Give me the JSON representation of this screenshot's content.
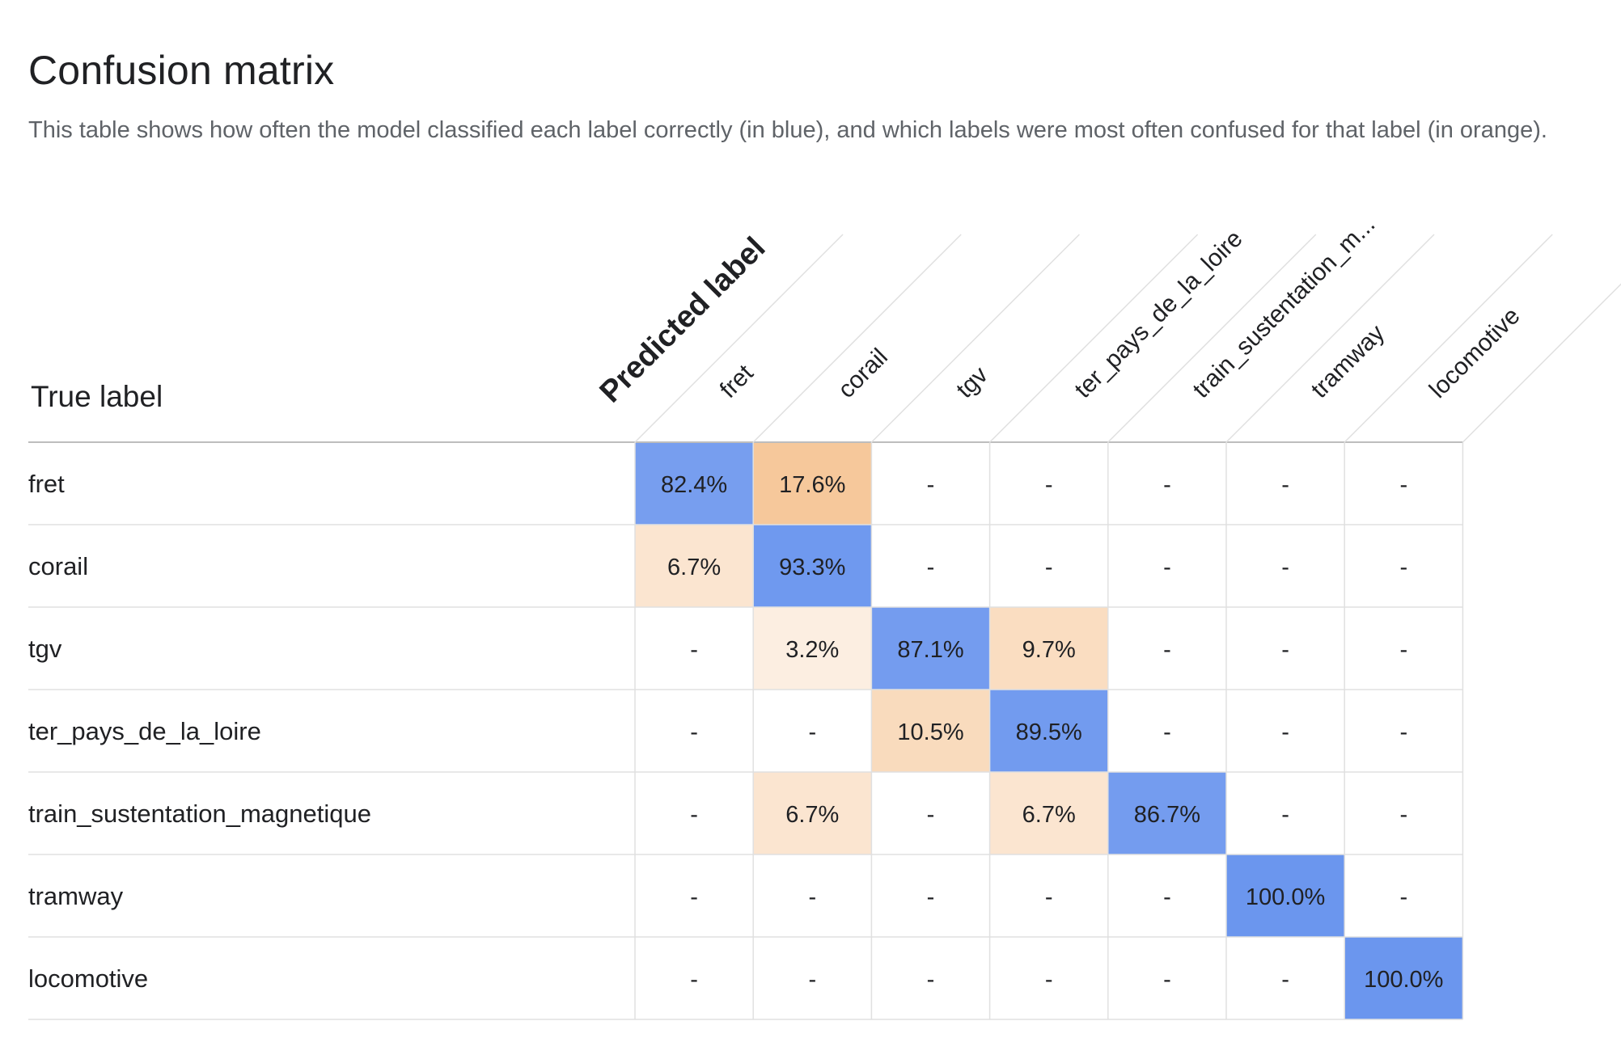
{
  "title": "Confusion matrix",
  "description": "This table shows how often the model classified each label correctly (in blue), and which labels were most often confused for that label (in orange).",
  "predicted_axis_label": "Predicted label",
  "true_axis_label": "True label",
  "column_labels": [
    "fret",
    "corail",
    "tgv",
    "ter_pays_de_la_loire",
    "train_sustentation_m...",
    "tramway",
    "locomotive"
  ],
  "row_labels": [
    "fret",
    "corail",
    "tgv",
    "ter_pays_de_la_loire",
    "train_sustentation_magnetique",
    "tramway",
    "locomotive"
  ],
  "colors": {
    "correct": "#6b96ee",
    "confused": "#f5c08c",
    "grid": "#e0e0e0",
    "header_line": "#bdbdbd"
  },
  "chart_data": {
    "type": "heatmap",
    "title": "Confusion matrix",
    "xlabel": "Predicted label",
    "ylabel": "True label",
    "x_categories": [
      "fret",
      "corail",
      "tgv",
      "ter_pays_de_la_loire",
      "train_sustentation_m...",
      "tramway",
      "locomotive"
    ],
    "y_categories": [
      "fret",
      "corail",
      "tgv",
      "ter_pays_de_la_loire",
      "train_sustentation_magnetique",
      "tramway",
      "locomotive"
    ],
    "values": [
      [
        82.4,
        17.6,
        null,
        null,
        null,
        null,
        null
      ],
      [
        6.7,
        93.3,
        null,
        null,
        null,
        null,
        null
      ],
      [
        null,
        3.2,
        87.1,
        9.7,
        null,
        null,
        null
      ],
      [
        null,
        null,
        10.5,
        89.5,
        null,
        null,
        null
      ],
      [
        null,
        6.7,
        null,
        6.7,
        86.7,
        null,
        null
      ],
      [
        null,
        null,
        null,
        null,
        null,
        100.0,
        null
      ],
      [
        null,
        null,
        null,
        null,
        null,
        null,
        100.0
      ]
    ],
    "cell_labels": [
      [
        "82.4%",
        "17.6%",
        "-",
        "-",
        "-",
        "-",
        "-"
      ],
      [
        "6.7%",
        "93.3%",
        "-",
        "-",
        "-",
        "-",
        "-"
      ],
      [
        "-",
        "3.2%",
        "87.1%",
        "9.7%",
        "-",
        "-",
        "-"
      ],
      [
        "-",
        "-",
        "10.5%",
        "89.5%",
        "-",
        "-",
        "-"
      ],
      [
        "-",
        "6.7%",
        "-",
        "6.7%",
        "86.7%",
        "-",
        "-"
      ],
      [
        "-",
        "-",
        "-",
        "-",
        "-",
        "100.0%",
        "-"
      ],
      [
        "-",
        "-",
        "-",
        "-",
        "-",
        "-",
        "100.0%"
      ]
    ],
    "value_unit": "%"
  }
}
